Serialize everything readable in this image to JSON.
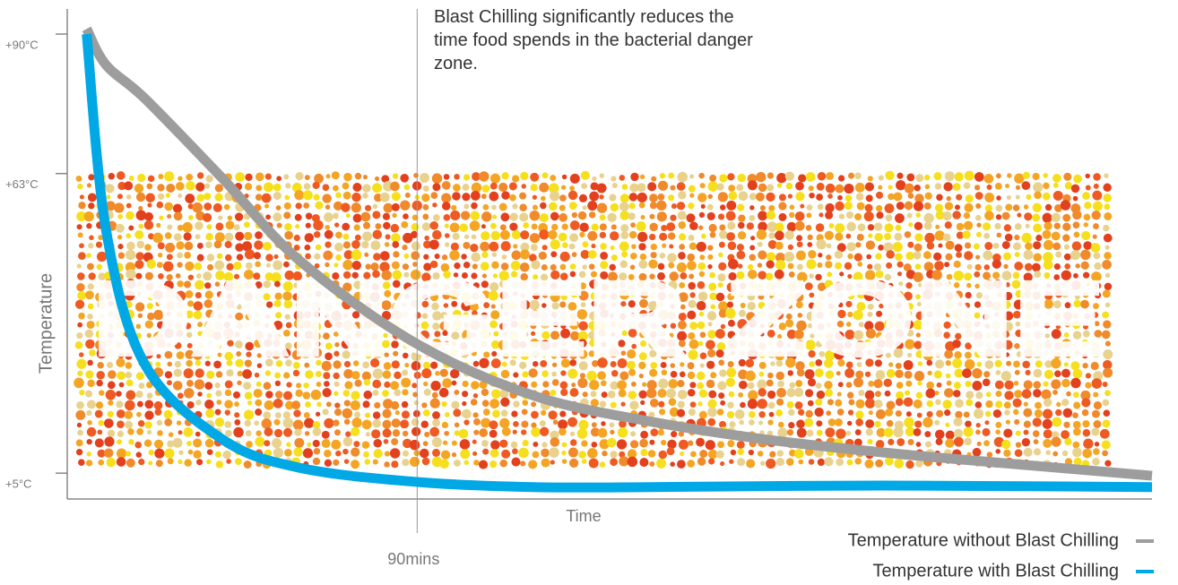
{
  "chart_data": {
    "type": "line",
    "annotation": "Blast Chilling significantly reduces the time food spends in the bacterial danger zone.",
    "xlabel": "Time",
    "ylabel": "Temperature",
    "x": [
      5,
      10,
      20,
      40,
      60,
      90,
      120,
      150,
      180,
      210,
      240,
      279
    ],
    "series": [
      {
        "name": "Temperature without Blast Chilling",
        "color": "#9d9d9d",
        "values": [
          91,
          84,
          77.5,
          62,
          46,
          30,
          20,
          15,
          11.5,
          9,
          7,
          4.5
        ]
      },
      {
        "name": "Temperature with Blast Chilling",
        "color": "#00a8e6",
        "values": [
          90,
          52,
          26,
          11.5,
          6,
          3.3,
          2.3,
          2.3,
          2.5,
          2.6,
          2.5,
          2.3
        ]
      }
    ],
    "xlim": [
      0,
      279
    ],
    "ylim": [
      0,
      92
    ],
    "xticks": [
      {
        "value": 90,
        "label": "90mins"
      }
    ],
    "yticks": [
      {
        "value": 5,
        "label": "+5°C"
      },
      {
        "value": 63,
        "label": "+63°C"
      },
      {
        "value": 90,
        "label": "+90°C"
      }
    ],
    "danger_zone": {
      "label": "DANGER ZONE",
      "range": [
        5,
        63
      ]
    },
    "legend": "bottom-right"
  }
}
